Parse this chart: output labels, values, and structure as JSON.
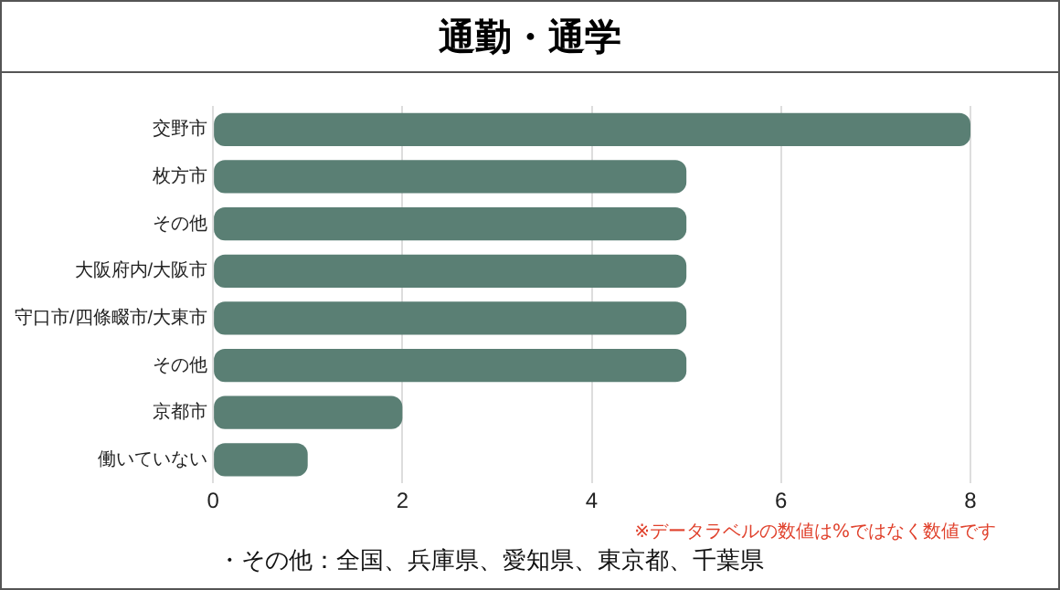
{
  "chart_data": {
    "type": "bar",
    "orientation": "horizontal",
    "title": "通勤・通学",
    "categories": [
      "交野市",
      "枚方市",
      "その他",
      "大阪府内/大阪市",
      "守口市/四條畷市/大東市",
      "その他",
      "京都市",
      "働いていない"
    ],
    "values": [
      8,
      5,
      5,
      5,
      5,
      5,
      2,
      1
    ],
    "color": "#5a7f74",
    "xlim": [
      0,
      8
    ],
    "xticks": [
      0,
      2,
      4,
      6,
      8
    ],
    "grid": "x",
    "legend": false,
    "annotations": [
      "※データラベルの数値は%ではなく数値です",
      "・その他：全国、兵庫県、愛知県、東京都、千葉県"
    ]
  }
}
